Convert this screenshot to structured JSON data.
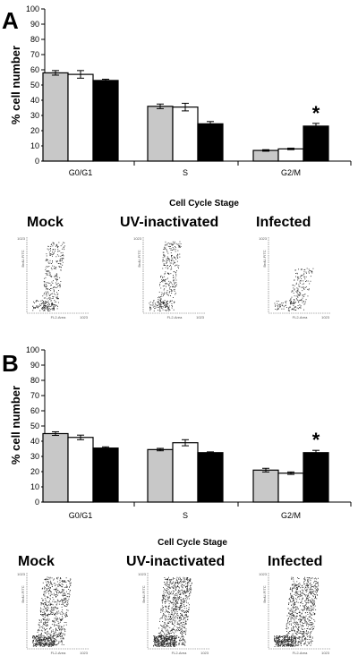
{
  "chart_data": [
    {
      "type": "bar",
      "panel": "A",
      "categories": [
        "G0/G1",
        "S",
        "G2/M"
      ],
      "series": [
        {
          "fill": "#c8c8c8",
          "values": [
            58,
            36,
            7
          ],
          "errors": [
            1.5,
            1.5,
            0.5
          ]
        },
        {
          "fill": "#ffffff",
          "values": [
            57,
            35.5,
            8
          ],
          "errors": [
            2.5,
            2.5,
            0.5
          ]
        },
        {
          "fill": "#000000",
          "values": [
            53,
            24.5,
            23
          ],
          "errors": [
            0.8,
            1.5,
            1.8
          ]
        }
      ],
      "ylabel": "% cell number",
      "xlabel": "Cell Cycle Stage",
      "ylim": [
        0,
        100
      ],
      "yticks": [
        0,
        10,
        20,
        30,
        40,
        50,
        60,
        70,
        80,
        90,
        100
      ],
      "annotation": {
        "text": "*",
        "category": "G2/M",
        "series_index": 2
      },
      "grid": false
    },
    {
      "type": "bar",
      "panel": "B",
      "categories": [
        "G0/G1",
        "S",
        "G2/M"
      ],
      "series": [
        {
          "fill": "#c8c8c8",
          "values": [
            45,
            34.5,
            21
          ],
          "errors": [
            1.2,
            0.8,
            1.2
          ]
        },
        {
          "fill": "#ffffff",
          "values": [
            42.5,
            39,
            19
          ],
          "errors": [
            1.5,
            2.0,
            0.8
          ]
        },
        {
          "fill": "#000000",
          "values": [
            35.5,
            32.5,
            32.5
          ],
          "errors": [
            0.8,
            0.5,
            1.5
          ]
        }
      ],
      "ylabel": "% cell number",
      "xlabel": "Cell Cycle Stage",
      "ylim": [
        0,
        100
      ],
      "yticks": [
        0,
        10,
        20,
        30,
        40,
        50,
        60,
        70,
        80,
        90,
        100
      ],
      "annotation": {
        "text": "*",
        "category": "G2/M",
        "series_index": 2
      },
      "grid": false
    }
  ],
  "panels": {
    "A": {
      "letter": "A"
    },
    "B": {
      "letter": "B"
    }
  },
  "flow_sections": [
    {
      "labels": [
        "Mock",
        "UV-inactivated",
        "Infected"
      ],
      "plot_y_label": "BrdU-FITC",
      "plot_x_label": "FL2-Area",
      "axis_max": "1023",
      "axis_zero": "0"
    },
    {
      "labels": [
        "Mock",
        "UV-inactivated",
        "Infected"
      ],
      "plot_y_label": "BrdU-FITC",
      "plot_x_label": "FL2-Area",
      "axis_max": "1023",
      "axis_zero": "0"
    }
  ]
}
